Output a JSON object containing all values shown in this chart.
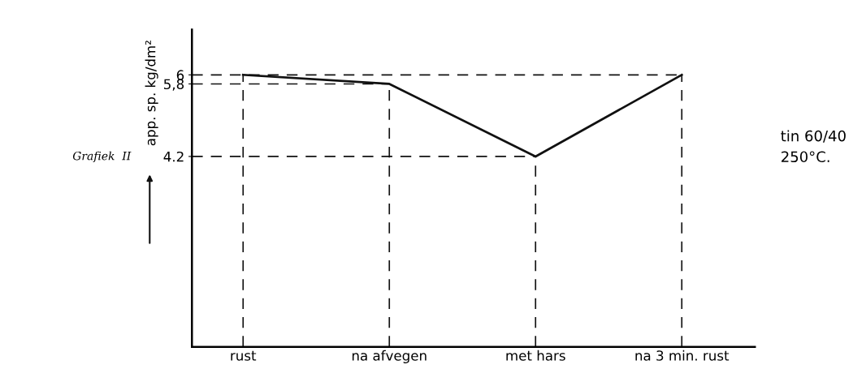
{
  "chart_data": {
    "type": "line",
    "categories": [
      "rust",
      "na afvegen",
      "met hars",
      "na 3 min. rust"
    ],
    "values": [
      6,
      5.8,
      4.2,
      6
    ],
    "color": "#111111",
    "ylim": [
      0,
      7
    ],
    "yticks": [
      {
        "value": 4.2,
        "label": "4.2"
      },
      {
        "value": 5.8,
        "label": "5,8"
      },
      6
    ],
    "ylabel": "app. sp. kg/dm²",
    "ref_lines": [
      {
        "axis": "y",
        "value": 6,
        "line_style": "dashed"
      },
      {
        "axis": "y",
        "value": 5.8,
        "line_style": "dashed"
      },
      {
        "axis": "y",
        "value": 4.2,
        "line_style": "dashed"
      },
      {
        "axis": "x",
        "value": "rust",
        "line_style": "dashed"
      },
      {
        "axis": "x",
        "value": "na afvegen",
        "line_style": "dashed"
      },
      {
        "axis": "x",
        "value": "met hars",
        "line_style": "dashed"
      },
      {
        "axis": "x",
        "value": "na 3 min. rust",
        "line_style": "dashed"
      }
    ],
    "marker": "none",
    "line_style": "solid",
    "annotations": [
      "Grafiek  II",
      "tin 60/40\n250°C."
    ]
  }
}
